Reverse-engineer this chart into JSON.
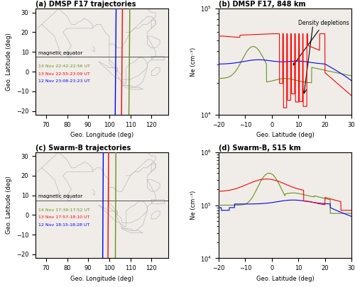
{
  "panel_a_title": "(a) DMSP F17 trajectories",
  "panel_b_title": "(b) DMSP F17, 848 km",
  "panel_c_title": "(c) Swarm-B trajectories",
  "panel_d_title": "(d) Swarm-B, 515 km",
  "map_xlim": [
    65,
    128
  ],
  "map_ylim": [
    -22,
    32
  ],
  "map_xticks": [
    70,
    80,
    90,
    100,
    110,
    120
  ],
  "map_yticks": [
    -20,
    -10,
    0,
    10,
    20,
    30
  ],
  "ne_xlim": [
    -20,
    30
  ],
  "ne_xticks": [
    -20,
    -10,
    0,
    10,
    20,
    30
  ],
  "geo_lon_label": "Geo. Longitude (deg)",
  "geo_lat_label_map": "Geo. Latitude (deg)",
  "geo_lat_label_ne": "Geo. Latitude (deg)",
  "ne_ylabel": "Ne (cm⁻³)",
  "magnetic_equator_lat": 7.5,
  "density_depletions_text": "Density depletions",
  "legend_a": [
    "12 Nov 23:08-23:23 UT",
    "13 Nov 22:55-23:09 UT",
    "14 Nov 22:42-22:56 UT"
  ],
  "legend_c": [
    "12 Nov 18:15-18:28 UT",
    "13 Nov 17:57-18:10 UT",
    "14 Nov 17:39-17:52 UT"
  ],
  "colors": [
    "blue",
    "red",
    "#6b8e23"
  ],
  "facecolor": "#f0ede8",
  "dmsp_blue_lon": 103.0,
  "dmsp_red_lon": 106.0,
  "dmsp_green_lon": 109.5,
  "swarm_blue_lon": 97.0,
  "swarm_red_lon": 99.5,
  "swarm_green_lon": 103.0,
  "traj_lat_min": -22,
  "traj_lat_max": 32
}
